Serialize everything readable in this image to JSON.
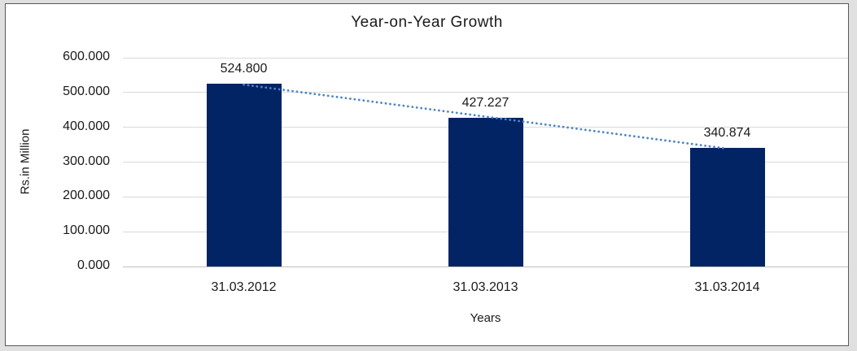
{
  "chart_data": {
    "type": "bar",
    "title": "Year-on-Year Growth",
    "xlabel": "Years",
    "ylabel": "Rs.in Million",
    "categories": [
      "31.03.2012",
      "31.03.2013",
      "31.03.2014"
    ],
    "values": [
      524.8,
      427.227,
      340.874
    ],
    "data_labels": [
      "524.800",
      "427.227",
      "340.874"
    ],
    "ylim": [
      0,
      600
    ],
    "yticks": [
      0,
      100,
      200,
      300,
      400,
      500,
      600
    ],
    "ytick_labels": [
      "0.000",
      "100.000",
      "200.000",
      "300.000",
      "400.000",
      "500.000",
      "600.000"
    ],
    "grid": true,
    "legend": "none",
    "trendline": {
      "type": "linear",
      "stroke": "dotted",
      "start_value": 522.6,
      "end_value": 338.7
    }
  },
  "colors": {
    "bar": "#022364",
    "trendline": "#4E86C8",
    "gridline": "#D9D9D9",
    "axis_line": "#C0C0C0",
    "text": "#1A1A1A",
    "chart_background": "#FFFFFF",
    "outer_background": "#E0E0E0",
    "frame_border": "#595959"
  }
}
